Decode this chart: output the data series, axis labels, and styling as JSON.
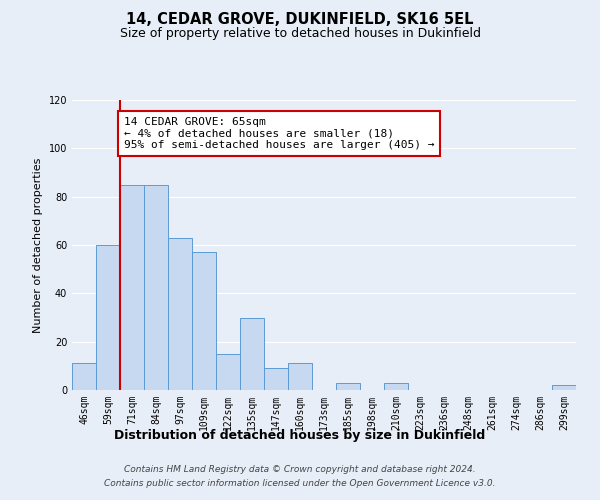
{
  "title": "14, CEDAR GROVE, DUKINFIELD, SK16 5EL",
  "subtitle": "Size of property relative to detached houses in Dukinfield",
  "xlabel": "Distribution of detached houses by size in Dukinfield",
  "ylabel": "Number of detached properties",
  "footer_line1": "Contains HM Land Registry data © Crown copyright and database right 2024.",
  "footer_line2": "Contains public sector information licensed under the Open Government Licence v3.0.",
  "bin_labels": [
    "46sqm",
    "59sqm",
    "71sqm",
    "84sqm",
    "97sqm",
    "109sqm",
    "122sqm",
    "135sqm",
    "147sqm",
    "160sqm",
    "173sqm",
    "185sqm",
    "198sqm",
    "210sqm",
    "223sqm",
    "236sqm",
    "248sqm",
    "261sqm",
    "274sqm",
    "286sqm",
    "299sqm"
  ],
  "bar_values": [
    11,
    60,
    85,
    85,
    63,
    57,
    15,
    30,
    9,
    11,
    0,
    3,
    0,
    3,
    0,
    0,
    0,
    0,
    0,
    0,
    2
  ],
  "bar_color": "#c6d9f0",
  "bar_edge_color": "#5b9bd5",
  "annotation_text": "14 CEDAR GROVE: 65sqm\n← 4% of detached houses are smaller (18)\n95% of semi-detached houses are larger (405) →",
  "annotation_box_color": "#ffffff",
  "annotation_box_edge_color": "#cc0000",
  "red_line_color": "#cc0000",
  "ylim": [
    0,
    120
  ],
  "yticks": [
    0,
    20,
    40,
    60,
    80,
    100,
    120
  ],
  "background_color": "#e8eef7",
  "plot_background_color": "#e8eef7",
  "grid_color": "#ffffff",
  "title_fontsize": 10.5,
  "subtitle_fontsize": 9,
  "xlabel_fontsize": 9,
  "ylabel_fontsize": 8,
  "tick_fontsize": 7,
  "annotation_fontsize": 8,
  "footer_fontsize": 6.5
}
